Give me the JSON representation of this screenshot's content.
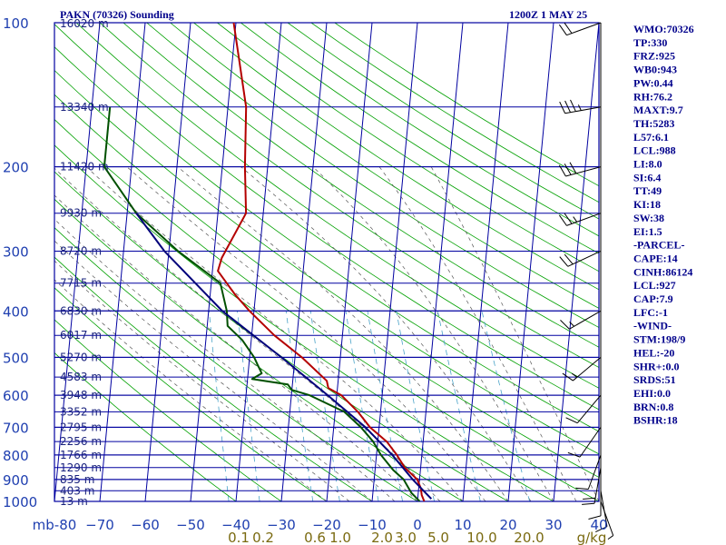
{
  "header": {
    "title": "PAKN (70326) Sounding",
    "time": "1200Z  1 MAY 25"
  },
  "indices": [
    "WMO:70326",
    "TP:330",
    "FRZ:925",
    "WB0:943",
    "PW:0.44",
    "RH:76.2",
    "MAXT:9.7",
    "TH:5283",
    "L57:6.1",
    "LCL:988",
    "LI:8.0",
    "SI:6.4",
    "TT:49",
    "KI:18",
    "SW:38",
    "EI:1.5",
    "-PARCEL-",
    "CAPE:14",
    "CINH:86124",
    "LCL:927",
    "CAP:7.9",
    "LFC:-1",
    "-WIND-",
    "STM:198/9",
    "HEL:-20",
    "SHR+:0.0",
    "SRDS:51",
    "EHI:0.0",
    "BRN:0.8",
    "BSHR:18"
  ],
  "colors": {
    "isobar": "#0000a0",
    "isotherm": "#0000a0",
    "dry_adiabat": "#00a000",
    "moist_adiabat": "#555555",
    "mixing_ratio": "#4aa3c8",
    "temperature": "#b40000",
    "dewpoint": "#005000",
    "parcel": "#00007a",
    "wind": "#000000"
  },
  "chart_data": {
    "type": "line",
    "title": "PAKN (70326) Sounding",
    "subtitle": "1200Z  1 MAY 25",
    "xlabel": "",
    "ylabel": "",
    "y_scale": "log",
    "y_reversed": true,
    "ylim": [
      1000,
      100
    ],
    "xlim": [
      -80,
      0
    ],
    "pressure_levels": [
      100,
      200,
      300,
      400,
      500,
      600,
      700,
      800,
      900,
      1000
    ],
    "pressure_tick_labels": [
      "100",
      "200",
      "300",
      "400",
      "500",
      "600",
      "700",
      "800",
      "900",
      "1000"
    ],
    "temp_ticks": [
      -80,
      -70,
      -60,
      -50,
      -40,
      -30,
      -20,
      -10,
      0,
      10,
      20,
      30,
      40
    ],
    "temp_tick_labels": [
      "mb-80",
      "−70",
      "−60",
      "−50",
      "−40",
      "−30",
      "−20",
      "−10",
      "0",
      "10",
      "20",
      "30",
      "40"
    ],
    "mixing_ratio_labels": [
      "0.1",
      "0.2",
      "0.6",
      "1.0",
      "2.0",
      "3.0",
      "5.0",
      "10.0",
      "20.0",
      "g/kg"
    ],
    "mixing_ratio_values": [
      0.1,
      0.2,
      0.6,
      1.0,
      2.0,
      3.0,
      5.0,
      10.0,
      20.0
    ],
    "height_labels": [
      {
        "p": 100,
        "label": "16020 m"
      },
      {
        "p": 150,
        "label": "13340 m"
      },
      {
        "p": 200,
        "label": "11420 m"
      },
      {
        "p": 250,
        "label": "9930 m"
      },
      {
        "p": 300,
        "label": "8720 m"
      },
      {
        "p": 350,
        "label": "7715 m"
      },
      {
        "p": 400,
        "label": "6830 m"
      },
      {
        "p": 450,
        "label": "6017 m"
      },
      {
        "p": 500,
        "label": "5270 m"
      },
      {
        "p": 550,
        "label": "4583 m"
      },
      {
        "p": 600,
        "label": "3948 m"
      },
      {
        "p": 650,
        "label": "3352 m"
      },
      {
        "p": 700,
        "label": "2795 m"
      },
      {
        "p": 750,
        "label": "2256 m"
      },
      {
        "p": 800,
        "label": "1766 m"
      },
      {
        "p": 850,
        "label": "1290 m"
      },
      {
        "p": 900,
        "label": "835 m"
      },
      {
        "p": 950,
        "label": "403 m"
      },
      {
        "p": 1000,
        "label": "13 m"
      }
    ],
    "series": [
      {
        "name": "",
        "key": "temperature",
        "points": [
          [
            100,
            -50.5
          ],
          [
            150,
            -46
          ],
          [
            200,
            -45
          ],
          [
            250,
            -43.8
          ],
          [
            310,
            -48.2
          ],
          [
            330,
            -48.8
          ],
          [
            370,
            -44.5
          ],
          [
            400,
            -41
          ],
          [
            450,
            -35
          ],
          [
            500,
            -28.5
          ],
          [
            560,
            -22.5
          ],
          [
            580,
            -22
          ],
          [
            600,
            -19
          ],
          [
            650,
            -15
          ],
          [
            700,
            -12
          ],
          [
            750,
            -8
          ],
          [
            800,
            -5.5
          ],
          [
            850,
            -3.5
          ],
          [
            900,
            -0.5
          ],
          [
            940,
            0.5
          ],
          [
            970,
            0.8
          ],
          [
            1000,
            1.5
          ]
        ]
      },
      {
        "name": "",
        "key": "dewpoint",
        "points": [
          [
            150,
            -76
          ],
          [
            200,
            -76
          ],
          [
            250,
            -68
          ],
          [
            300,
            -58
          ],
          [
            350,
            -48
          ],
          [
            400,
            -46
          ],
          [
            430,
            -45.5
          ],
          [
            460,
            -42
          ],
          [
            500,
            -39
          ],
          [
            520,
            -38
          ],
          [
            540,
            -37
          ],
          [
            555,
            -39
          ],
          [
            570,
            -31
          ],
          [
            585,
            -30
          ],
          [
            600,
            -26
          ],
          [
            650,
            -18
          ],
          [
            700,
            -14
          ],
          [
            750,
            -11
          ],
          [
            800,
            -9
          ],
          [
            860,
            -6
          ],
          [
            900,
            -3.5
          ],
          [
            930,
            -2.5
          ],
          [
            960,
            -1.5
          ],
          [
            1000,
            0.5
          ]
        ]
      },
      {
        "name": "",
        "key": "parcel",
        "points": [
          [
            250,
            -68
          ],
          [
            300,
            -61
          ],
          [
            400,
            -47
          ],
          [
            500,
            -33
          ],
          [
            600,
            -22
          ],
          [
            700,
            -13
          ],
          [
            800,
            -6.5
          ],
          [
            900,
            -1.5
          ],
          [
            988,
            3
          ]
        ]
      }
    ],
    "wind_barbs": [
      {
        "p": 100,
        "dir": 250,
        "spd": 20
      },
      {
        "p": 150,
        "dir": 260,
        "spd": 35
      },
      {
        "p": 200,
        "dir": 255,
        "spd": 30
      },
      {
        "p": 250,
        "dir": 250,
        "spd": 25
      },
      {
        "p": 300,
        "dir": 245,
        "spd": 20
      },
      {
        "p": 400,
        "dir": 240,
        "spd": 15
      },
      {
        "p": 500,
        "dir": 230,
        "spd": 15
      },
      {
        "p": 600,
        "dir": 220,
        "spd": 10
      },
      {
        "p": 700,
        "dir": 215,
        "spd": 10
      },
      {
        "p": 800,
        "dir": 200,
        "spd": 10
      },
      {
        "p": 850,
        "dir": 190,
        "spd": 20
      },
      {
        "p": 900,
        "dir": 180,
        "spd": 10
      },
      {
        "p": 950,
        "dir": 170,
        "spd": 10
      },
      {
        "p": 1000,
        "dir": 160,
        "spd": 5
      }
    ],
    "grid": true
  }
}
